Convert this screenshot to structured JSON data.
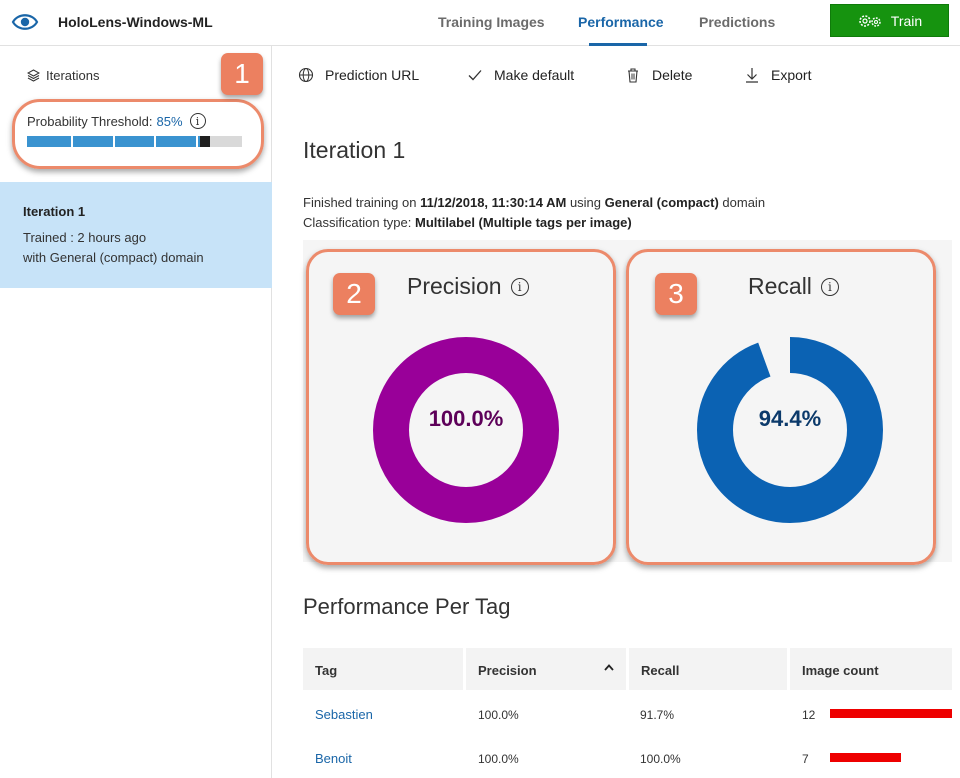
{
  "header": {
    "app_title": "HoloLens-Windows-ML",
    "tabs": [
      {
        "label": "Training Images",
        "active": false
      },
      {
        "label": "Performance",
        "active": true
      },
      {
        "label": "Predictions",
        "active": false
      }
    ],
    "train_label": "Train"
  },
  "sidebar": {
    "iterations_label": "Iterations",
    "threshold_label": "Probability Threshold:",
    "threshold_value": "85%",
    "threshold_fraction": 0.85,
    "info_glyph": "i",
    "iteration": {
      "name": "Iteration 1",
      "trained": "Trained : 2 hours ago",
      "domain": "with General (compact) domain"
    }
  },
  "callouts": [
    "1",
    "2",
    "3"
  ],
  "toolbar": {
    "prediction_url": "Prediction URL",
    "make_default": "Make default",
    "delete": "Delete",
    "export": "Export"
  },
  "main": {
    "title": "Iteration 1",
    "finished_prefix": "Finished training on ",
    "finished_date": "11/12/2018, 11:30:14 AM",
    "finished_mid": " using ",
    "finished_domain": "General (compact)",
    "finished_suffix": " domain",
    "classification_prefix": "Classification type: ",
    "classification_value": "Multilabel (Multiple tags per image)"
  },
  "metrics": {
    "precision": {
      "title": "Precision",
      "value_label": "100.0%",
      "value": 1.0,
      "color": "#990099",
      "text_color": "#5d0059"
    },
    "recall": {
      "title": "Recall",
      "value_label": "94.4%",
      "value": 0.944,
      "color": "#0b62b3",
      "text_color": "#0c3a6b"
    }
  },
  "per_tag": {
    "title": "Performance Per Tag",
    "columns": [
      "Tag",
      "Precision",
      "Recall",
      "Image count"
    ],
    "sort_indicator": "^",
    "rows": [
      {
        "tag": "Sebastien",
        "precision": "100.0%",
        "recall": "91.7%",
        "image_count": "12",
        "count": 12
      },
      {
        "tag": "Benoit",
        "precision": "100.0%",
        "recall": "100.0%",
        "image_count": "7",
        "count": 7
      }
    ]
  },
  "colors": {
    "accent": "#1a66a8",
    "train_button": "#16930f",
    "selected_iteration": "#c7e3f8",
    "callout": "#ec8060",
    "count_bar": "#ee0000"
  },
  "icons": {
    "logo": "eye-icon",
    "iterations": "layers-icon",
    "prediction_url": "globe-icon",
    "make_default": "check-icon",
    "delete": "trash-icon",
    "export": "download-icon",
    "train": "gears-icon"
  }
}
